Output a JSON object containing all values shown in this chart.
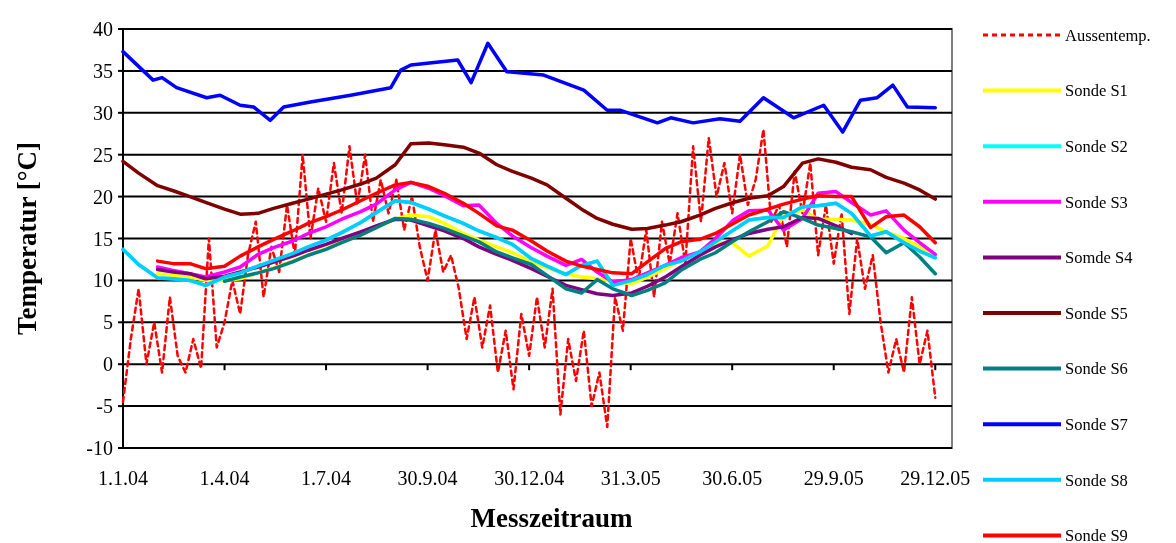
{
  "chart_data": {
    "type": "line",
    "xlabel": "Messzeitraum",
    "ylabel": "Temperatur [°C]",
    "xlim": [
      "2004-01-01",
      "2006-01-13"
    ],
    "ylim": [
      -10,
      40
    ],
    "yticks": [
      -10,
      -5,
      0,
      5,
      10,
      15,
      20,
      25,
      30,
      35,
      40
    ],
    "xticks": [
      {
        "value": "2004-01-01",
        "label": "1.1.04"
      },
      {
        "value": "2004-04-01",
        "label": "1.4.04"
      },
      {
        "value": "2004-07-01",
        "label": "1.7.04"
      },
      {
        "value": "2004-09-30",
        "label": "30.9.04"
      },
      {
        "value": "2004-12-30",
        "label": "30.12.04"
      },
      {
        "value": "2005-03-31",
        "label": "31.3.05"
      },
      {
        "value": "2005-06-30",
        "label": "30.6.05"
      },
      {
        "value": "2005-09-29",
        "label": "29.9.05"
      },
      {
        "value": "2005-12-29",
        "label": "29.12.05"
      }
    ],
    "grid": "y",
    "legend": "right",
    "marker": "none",
    "x": [
      "2004-01-01",
      "2004-01-15",
      "2004-02-01",
      "2004-02-15",
      "2004-03-01",
      "2004-03-15",
      "2004-04-01",
      "2004-04-15",
      "2004-05-01",
      "2004-05-15",
      "2004-06-01",
      "2004-06-15",
      "2004-07-01",
      "2004-07-15",
      "2004-08-01",
      "2004-08-15",
      "2004-09-01",
      "2004-09-15",
      "2004-10-01",
      "2004-10-15",
      "2004-11-01",
      "2004-11-15",
      "2004-12-01",
      "2004-12-15",
      "2005-01-01",
      "2005-01-15",
      "2005-02-01",
      "2005-02-15",
      "2005-03-01",
      "2005-03-15",
      "2005-04-01",
      "2005-04-15",
      "2005-05-01",
      "2005-05-15",
      "2005-06-01",
      "2005-06-15",
      "2005-07-01",
      "2005-07-15",
      "2005-08-01",
      "2005-08-15",
      "2005-09-01",
      "2005-09-15",
      "2005-10-01",
      "2005-10-15",
      "2005-11-01",
      "2005-11-15",
      "2005-12-01",
      "2005-12-15",
      "2005-12-29"
    ],
    "series": [
      {
        "name": "Aussentemp.",
        "color": "#ff0000",
        "line_style": "dashed",
        "x": [
          "2004-01-01",
          "2004-01-08",
          "2004-01-15",
          "2004-01-22",
          "2004-01-29",
          "2004-02-05",
          "2004-02-12",
          "2004-02-19",
          "2004-02-26",
          "2004-03-04",
          "2004-03-11",
          "2004-03-18",
          "2004-03-25",
          "2004-04-01",
          "2004-04-08",
          "2004-04-15",
          "2004-04-22",
          "2004-04-29",
          "2004-05-06",
          "2004-05-13",
          "2004-05-20",
          "2004-05-27",
          "2004-06-03",
          "2004-06-10",
          "2004-06-17",
          "2004-06-24",
          "2004-07-01",
          "2004-07-08",
          "2004-07-15",
          "2004-07-22",
          "2004-07-29",
          "2004-08-05",
          "2004-08-12",
          "2004-08-19",
          "2004-08-26",
          "2004-09-02",
          "2004-09-09",
          "2004-09-16",
          "2004-09-23",
          "2004-09-30",
          "2004-10-07",
          "2004-10-14",
          "2004-10-21",
          "2004-10-28",
          "2004-11-04",
          "2004-11-11",
          "2004-11-18",
          "2004-11-25",
          "2004-12-02",
          "2004-12-09",
          "2004-12-16",
          "2004-12-23",
          "2004-12-30",
          "2005-01-06",
          "2005-01-13",
          "2005-01-20",
          "2005-01-27",
          "2005-02-03",
          "2005-02-10",
          "2005-02-17",
          "2005-02-24",
          "2005-03-03",
          "2005-03-10",
          "2005-03-17",
          "2005-03-24",
          "2005-03-31",
          "2005-04-07",
          "2005-04-14",
          "2005-04-21",
          "2005-04-28",
          "2005-05-05",
          "2005-05-12",
          "2005-05-19",
          "2005-05-26",
          "2005-06-02",
          "2005-06-09",
          "2005-06-16",
          "2005-06-23",
          "2005-06-30",
          "2005-07-07",
          "2005-07-14",
          "2005-07-21",
          "2005-07-28",
          "2005-08-04",
          "2005-08-11",
          "2005-08-18",
          "2005-08-25",
          "2005-09-01",
          "2005-09-08",
          "2005-09-15",
          "2005-09-22",
          "2005-09-29",
          "2005-10-06",
          "2005-10-13",
          "2005-10-20",
          "2005-10-27",
          "2005-11-03",
          "2005-11-10",
          "2005-11-17",
          "2005-11-24",
          "2005-12-01",
          "2005-12-08",
          "2005-12-15",
          "2005-12-22",
          "2005-12-29"
        ],
        "values": [
          -4.5,
          3,
          9,
          0,
          5,
          -1,
          8,
          1,
          -1,
          3,
          -0.5,
          15,
          2,
          5,
          10,
          6,
          13,
          17,
          8,
          14,
          11,
          19,
          13,
          25,
          15,
          21,
          17,
          24,
          18,
          26,
          19,
          25,
          17,
          22,
          18,
          22,
          16,
          20,
          14,
          10,
          16,
          11,
          13,
          9,
          3,
          8,
          2,
          7,
          -1,
          4,
          -3,
          6,
          1,
          8,
          2,
          9,
          -6,
          3,
          -2,
          4,
          -5,
          -1,
          -7.5,
          8,
          4,
          15,
          10,
          16,
          8,
          17,
          12,
          18,
          12,
          26,
          17,
          27,
          20,
          24,
          18,
          25,
          19,
          22,
          28,
          17,
          19,
          14,
          23,
          18,
          24,
          13,
          19,
          12,
          18,
          6,
          15,
          9,
          13,
          5,
          -1,
          3,
          -1,
          8,
          0,
          4,
          -4
        ]
      },
      {
        "name": "Sonde S1",
        "color": "#ffff00",
        "values": [
          null,
          null,
          10.8,
          10.6,
          10.4,
          10.0,
          10.0,
          10.2,
          10.9,
          11.5,
          12.3,
          13.0,
          13.8,
          14.6,
          15.5,
          16.3,
          17.3,
          17.8,
          17.6,
          16.8,
          15.6,
          14.8,
          14.0,
          13.3,
          12.2,
          11.5,
          10.8,
          10.4,
          10.2,
          9.9,
          9.6,
          10.4,
          11.4,
          12.4,
          13.4,
          14.5,
          14.4,
          12.9,
          14.1,
          17.8,
          18.4,
          17.3,
          17.3,
          17.2,
          16.7,
          15.8,
          15.0,
          14.0,
          13.0
        ]
      },
      {
        "name": "Sonde S2",
        "color": "#00ffff",
        "values": [
          13.7,
          11.9,
          10.3,
          10.2,
          10.0,
          9.4,
          10.4,
          10.9,
          11.7,
          12.4,
          13.2,
          14.0,
          14.8,
          15.7,
          16.9,
          18.1,
          19.5,
          19.3,
          18.5,
          17.7,
          16.8,
          15.9,
          15.1,
          14.3,
          12.6,
          11.7,
          10.7,
          11.8,
          12.3,
          9.4,
          10.0,
          10.7,
          11.8,
          12.3,
          13.4,
          14.6,
          16.0,
          17.2,
          17.5,
          17.5,
          18.8,
          18.9,
          19.2,
          18.0,
          15.3,
          15.8,
          14.5,
          13.5,
          12.7
        ]
      },
      {
        "name": "Sonde S3",
        "color": "#ff00ff",
        "values": [
          null,
          null,
          11.6,
          11.2,
          10.8,
          10.4,
          11.0,
          11.6,
          13.1,
          13.9,
          14.7,
          15.6,
          16.4,
          17.3,
          18.2,
          19.1,
          20.8,
          21.7,
          21.0,
          20.1,
          18.9,
          19.0,
          16.8,
          15.3,
          13.9,
          12.9,
          11.8,
          12.5,
          11.0,
          9.8,
          10.1,
          10.9,
          11.8,
          12.7,
          13.4,
          15.0,
          17.2,
          18.3,
          18.4,
          16.0,
          17.4,
          20.4,
          20.6,
          19.3,
          17.8,
          18.3,
          16.0,
          14.5,
          13.1
        ]
      },
      {
        "name": "Somde S4",
        "color": "#800080",
        "values": [
          null,
          null,
          11.3,
          11.0,
          10.8,
          10.2,
          10.5,
          11.0,
          11.6,
          12.2,
          12.9,
          13.6,
          14.3,
          15.0,
          15.8,
          16.5,
          17.3,
          17.2,
          16.5,
          15.9,
          15.0,
          14.0,
          13.1,
          12.4,
          11.4,
          10.5,
          9.4,
          8.9,
          8.4,
          8.2,
          8.5,
          9.3,
          10.4,
          11.6,
          13.0,
          14.0,
          14.9,
          15.6,
          16.1,
          16.4,
          17.5,
          17.4,
          16.5,
          15.6,
          null,
          null,
          null,
          null,
          null
        ]
      },
      {
        "name": "Sonde S5",
        "color": "#800000",
        "values": [
          24.2,
          22.8,
          21.3,
          20.7,
          20.0,
          19.3,
          18.5,
          17.9,
          18.0,
          18.6,
          19.2,
          19.7,
          20.3,
          20.8,
          21.5,
          22.2,
          23.8,
          26.3,
          26.4,
          26.2,
          25.9,
          25.2,
          23.8,
          23.0,
          22.2,
          21.4,
          19.8,
          18.5,
          17.4,
          16.7,
          16.1,
          16.2,
          16.6,
          17.0,
          17.8,
          18.6,
          19.3,
          19.8,
          20.1,
          21.2,
          24.0,
          24.5,
          24.1,
          23.5,
          23.2,
          22.3,
          21.6,
          20.8,
          19.7
        ]
      },
      {
        "name": "Sonde S6",
        "color": "#008080",
        "values": [
          null,
          null,
          null,
          null,
          null,
          null,
          9.9,
          10.4,
          10.9,
          11.4,
          12.2,
          13.0,
          13.7,
          14.5,
          15.4,
          16.3,
          17.4,
          17.3,
          16.8,
          16.2,
          15.3,
          14.6,
          13.4,
          12.7,
          11.9,
          10.6,
          9.0,
          8.5,
          10.1,
          9.0,
          8.2,
          8.8,
          9.7,
          11.2,
          12.5,
          13.3,
          14.7,
          15.8,
          17.0,
          18.2,
          17.4,
          16.6,
          16.2,
          15.8,
          15.2,
          13.3,
          14.5,
          12.8,
          10.8
        ]
      },
      {
        "name": "Sonde S7",
        "color": "#0000ff",
        "x": [
          "2004-01-01",
          "2004-01-28",
          "2004-02-05",
          "2004-02-18",
          "2004-03-16",
          "2004-03-28",
          "2004-04-15",
          "2004-04-27",
          "2004-05-12",
          "2004-05-24",
          "2004-06-17",
          "2004-07-23",
          "2004-08-28",
          "2004-09-06",
          "2004-09-15",
          "2004-10-27",
          "2004-11-08",
          "2004-11-23",
          "2004-12-10",
          "2005-01-12",
          "2005-02-17",
          "2005-03-10",
          "2005-03-22",
          "2005-04-24",
          "2005-05-06",
          "2005-05-26",
          "2005-06-19",
          "2005-07-07",
          "2005-07-28",
          "2005-08-24",
          "2005-09-20",
          "2005-10-07",
          "2005-10-23",
          "2005-11-07",
          "2005-11-21",
          "2005-12-04",
          "2005-12-29"
        ],
        "values": [
          37.3,
          33.9,
          34.2,
          33.0,
          31.8,
          32.1,
          30.9,
          30.7,
          29.1,
          30.7,
          31.3,
          32.1,
          33.0,
          35.1,
          35.7,
          36.3,
          33.6,
          38.3,
          34.9,
          34.5,
          32.7,
          30.3,
          30.3,
          28.8,
          29.4,
          28.8,
          29.3,
          29.0,
          31.8,
          29.4,
          30.9,
          27.7,
          31.5,
          31.8,
          33.3,
          30.7,
          30.6
        ]
      },
      {
        "name": "Sonde S8",
        "color": "#00ccff",
        "values": [
          13.7,
          11.9,
          10.3,
          10.2,
          10.0,
          9.4,
          10.4,
          10.9,
          11.7,
          12.4,
          13.2,
          14.0,
          14.8,
          15.7,
          16.9,
          18.1,
          19.5,
          19.3,
          18.5,
          17.7,
          16.8,
          15.9,
          15.1,
          14.3,
          12.6,
          11.7,
          10.7,
          11.8,
          12.3,
          9.4,
          10.0,
          10.7,
          11.8,
          12.3,
          13.4,
          14.6,
          16.0,
          17.2,
          17.5,
          17.5,
          18.8,
          18.9,
          19.2,
          18.0,
          15.3,
          15.8,
          14.5,
          13.5,
          12.7
        ]
      },
      {
        "name": "Sonde S9",
        "color": "#ff0000",
        "values": [
          null,
          null,
          12.3,
          12.0,
          12.0,
          11.4,
          11.7,
          12.9,
          14.0,
          14.9,
          15.9,
          16.8,
          17.6,
          18.4,
          19.5,
          20.4,
          21.4,
          21.7,
          21.2,
          20.4,
          19.2,
          18.0,
          16.5,
          16.0,
          14.7,
          13.5,
          12.3,
          11.7,
          11.3,
          10.9,
          10.8,
          12.2,
          13.8,
          14.6,
          14.9,
          15.6,
          16.8,
          17.8,
          18.5,
          19.1,
          19.7,
          20.1,
          20.0,
          20.0,
          16.3,
          17.6,
          17.8,
          16.4,
          14.5
        ]
      }
    ]
  }
}
